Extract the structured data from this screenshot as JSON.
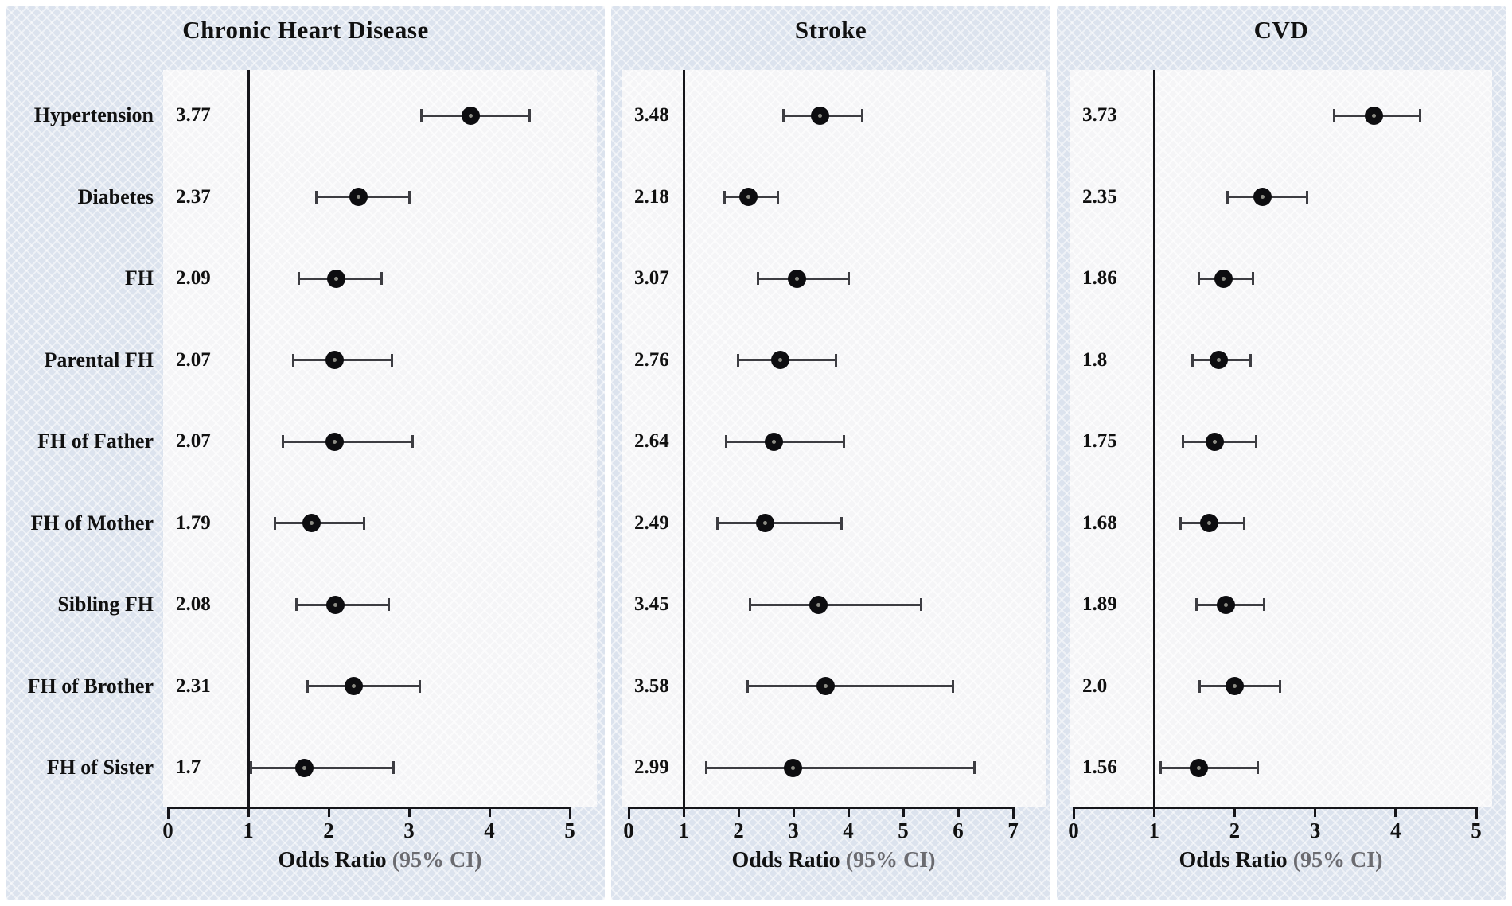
{
  "shared": {
    "categories": [
      "Hypertension",
      "Diabetes",
      "FH",
      "Parental FH",
      "FH of Father",
      "FH of Mother",
      "Sibling FH",
      "FH of Brother",
      "FH of Sister"
    ],
    "xlabel_main": "Odds Ratio",
    "xlabel_sub": "(95% CI)",
    "colors": {
      "card_bg": "#dce3ee",
      "plot_bg": "#f5f5f7",
      "marker": "#0d0d10",
      "whisker": "#3d3d42",
      "axis": "#15151a",
      "sub_label_gray": "#6b6b70"
    }
  },
  "chart_data": [
    {
      "type": "scatter",
      "variant": "forest-plot",
      "title": "Chronic Heart Disease",
      "xlabel": "Odds Ratio (95% CI)",
      "xlim": [
        0,
        5
      ],
      "xticks": [
        "0",
        "1",
        "2",
        "3",
        "4",
        "5"
      ],
      "refline_x": 1,
      "grid": false,
      "rows": [
        {
          "or_label": "3.77",
          "or": 3.77,
          "ci_low": 3.15,
          "ci_high": 4.5
        },
        {
          "or_label": "2.37",
          "or": 2.37,
          "ci_low": 1.85,
          "ci_high": 3.0
        },
        {
          "or_label": "2.09",
          "or": 2.09,
          "ci_low": 1.63,
          "ci_high": 2.66
        },
        {
          "or_label": "2.07",
          "or": 2.07,
          "ci_low": 1.56,
          "ci_high": 2.79
        },
        {
          "or_label": "2.07",
          "or": 2.07,
          "ci_low": 1.43,
          "ci_high": 3.04
        },
        {
          "or_label": "1.79",
          "or": 1.79,
          "ci_low": 1.33,
          "ci_high": 2.44
        },
        {
          "or_label": "2.08",
          "or": 2.08,
          "ci_low": 1.6,
          "ci_high": 2.75
        },
        {
          "or_label": "2.31",
          "or": 2.31,
          "ci_low": 1.74,
          "ci_high": 3.13
        },
        {
          "or_label": "1.7",
          "or": 1.7,
          "ci_low": 1.03,
          "ci_high": 2.81
        }
      ]
    },
    {
      "type": "scatter",
      "variant": "forest-plot",
      "title": "Stroke",
      "xlabel": "Odds Ratio (95% CI)",
      "xlim": [
        0,
        7
      ],
      "xticks": [
        "0",
        "1",
        "2",
        "3",
        "4",
        "5",
        "6",
        "7"
      ],
      "refline_x": 1,
      "grid": false,
      "rows": [
        {
          "or_label": "3.48",
          "or": 3.48,
          "ci_low": 2.82,
          "ci_high": 4.26
        },
        {
          "or_label": "2.18",
          "or": 2.18,
          "ci_low": 1.74,
          "ci_high": 2.72
        },
        {
          "or_label": "3.07",
          "or": 3.07,
          "ci_low": 2.36,
          "ci_high": 4.01
        },
        {
          "or_label": "2.76",
          "or": 2.76,
          "ci_low": 1.99,
          "ci_high": 3.77
        },
        {
          "or_label": "2.64",
          "or": 2.64,
          "ci_low": 1.77,
          "ci_high": 3.92
        },
        {
          "or_label": "2.49",
          "or": 2.49,
          "ci_low": 1.61,
          "ci_high": 3.87
        },
        {
          "or_label": "3.45",
          "or": 3.45,
          "ci_low": 2.21,
          "ci_high": 5.33
        },
        {
          "or_label": "3.58",
          "or": 3.58,
          "ci_low": 2.16,
          "ci_high": 5.91
        },
        {
          "or_label": "2.99",
          "or": 2.99,
          "ci_low": 1.42,
          "ci_high": 6.3
        }
      ]
    },
    {
      "type": "scatter",
      "variant": "forest-plot",
      "title": "CVD",
      "xlabel": "Odds Ratio (95% CI)",
      "xlim": [
        0,
        5
      ],
      "xticks": [
        "0",
        "1",
        "2",
        "3",
        "4",
        "5"
      ],
      "refline_x": 1,
      "grid": false,
      "rows": [
        {
          "or_label": "3.73",
          "or": 3.73,
          "ci_low": 3.24,
          "ci_high": 4.3
        },
        {
          "or_label": "2.35",
          "or": 2.35,
          "ci_low": 1.91,
          "ci_high": 2.9
        },
        {
          "or_label": "1.86",
          "or": 1.86,
          "ci_low": 1.56,
          "ci_high": 2.23
        },
        {
          "or_label": "1.8",
          "or": 1.8,
          "ci_low": 1.48,
          "ci_high": 2.2
        },
        {
          "or_label": "1.75",
          "or": 1.75,
          "ci_low": 1.36,
          "ci_high": 2.27
        },
        {
          "or_label": "1.68",
          "or": 1.68,
          "ci_low": 1.33,
          "ci_high": 2.12
        },
        {
          "or_label": "1.89",
          "or": 1.89,
          "ci_low": 1.53,
          "ci_high": 2.37
        },
        {
          "or_label": "2.0",
          "or": 2.0,
          "ci_low": 1.57,
          "ci_high": 2.56
        },
        {
          "or_label": "1.56",
          "or": 1.56,
          "ci_low": 1.08,
          "ci_high": 2.29
        }
      ]
    }
  ]
}
